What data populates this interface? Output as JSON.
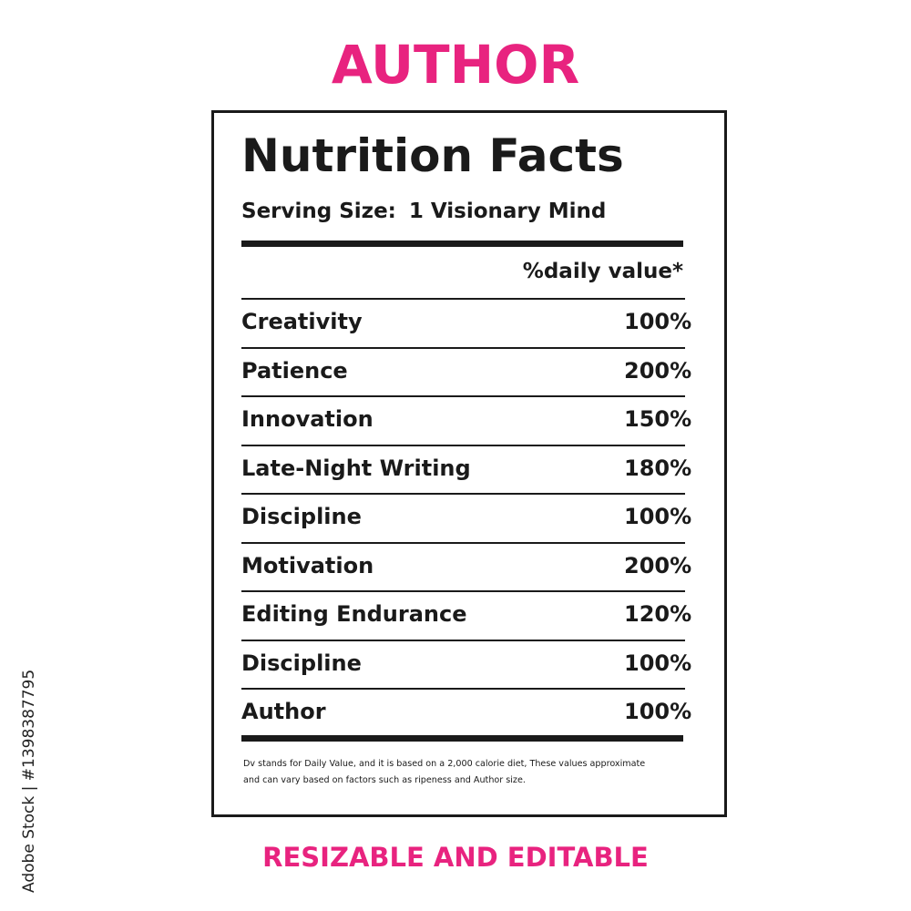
{
  "header": {
    "title": "AUTHOR"
  },
  "label": {
    "title": "Nutrition Facts",
    "serving_label": "Serving Size:",
    "serving_value": "1 Visionary Mind",
    "column_header": "%daily value*",
    "rows": [
      [
        "Creativity",
        "100%"
      ],
      [
        "Patience",
        "200%"
      ],
      [
        "Innovation",
        "150%"
      ],
      [
        "Late-Night Writing",
        "180%"
      ],
      [
        "Discipline",
        "100%"
      ],
      [
        "Motivation",
        "200%"
      ],
      [
        "Editing Endurance",
        "120%"
      ],
      [
        "Discipline",
        "100%"
      ],
      [
        "Author",
        "100%"
      ]
    ],
    "footnote": [
      "Dv stands for Daily Value, and it is based on a 2,000 calorie diet, These values approximate",
      "and can vary based on factors such as ripeness and Author size."
    ]
  },
  "footer": {
    "text": "RESIZABLE AND EDITABLE"
  },
  "watermark": {
    "stock_id": "Adobe Stock | #1398387795"
  }
}
